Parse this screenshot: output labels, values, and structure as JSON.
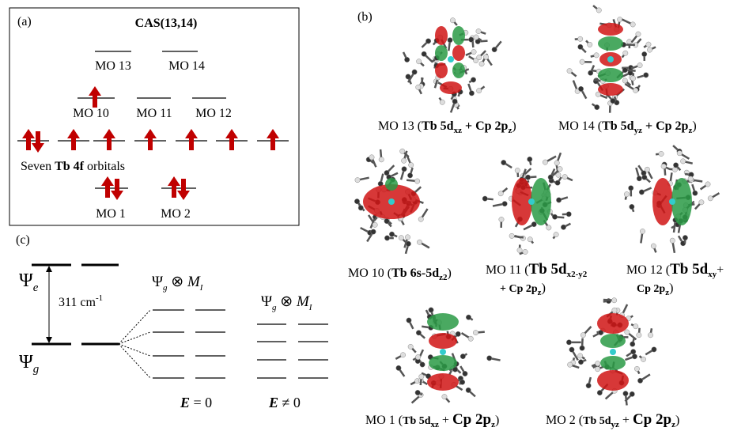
{
  "panel_a": {
    "label": "(a)",
    "title": "CAS(13,14)",
    "levels": {
      "mo13": "MO 13",
      "mo14": "MO 14",
      "mo10": "MO 10",
      "mo11": "MO 11",
      "mo12": "MO 12",
      "mo1": "MO 1",
      "mo2": "MO 2"
    },
    "f_caption": [
      "Seven ",
      "Tb 4f",
      " orbitals"
    ]
  },
  "panel_b": {
    "label": "(b)",
    "captions": [
      [
        "MO 13 (",
        "Tb 5d",
        "xz",
        " + Cp 2p",
        "z",
        ")"
      ],
      [
        "MO 14 (",
        "Tb 5d",
        "yz",
        " + Cp 2p",
        "z",
        ")"
      ],
      [
        "MO 10 (",
        "Tb 6s-5d",
        "z2",
        ")"
      ],
      [
        "MO 11 (",
        "Tb 5d",
        "x2-y2",
        "+ Cp 2p",
        "z",
        ")"
      ],
      [
        "MO 12 (",
        "Tb 5d",
        "xy",
        "+",
        "Cp 2p",
        "z",
        ")"
      ],
      [
        "MO 1 (",
        "Tb 5d",
        "xz",
        " + ",
        "Cp 2p",
        "z",
        ")"
      ],
      [
        "MO 2 (",
        "Tb 5d",
        "yz",
        " + ",
        "Cp 2p",
        "z",
        ")"
      ]
    ]
  },
  "panel_c": {
    "label": "(c)",
    "psi": "Ψ",
    "e_sub": "e",
    "g_sub": "g",
    "gap": "311 cm",
    "gap_unit": "-1",
    "product": [
      "Ψ",
      "g",
      " ⊗ ",
      "M",
      "I"
    ],
    "e_zero": [
      "E",
      " = 0"
    ],
    "e_nonzero": [
      "E",
      " ≠ 0"
    ]
  }
}
